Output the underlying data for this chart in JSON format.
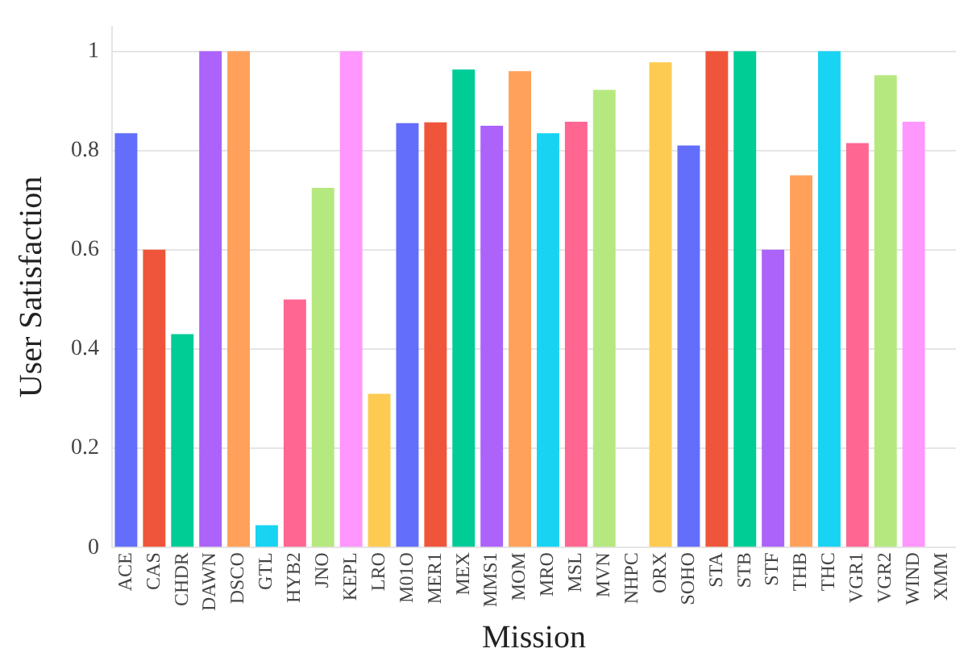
{
  "chart_data": {
    "type": "bar",
    "xlabel": "Mission",
    "ylabel": "User Satisfaction",
    "categories": [
      "ACE",
      "CAS",
      "CHDR",
      "DAWN",
      "DSCO",
      "GTL",
      "HYB2",
      "JNO",
      "KEPL",
      "LRO",
      "M01O",
      "MER1",
      "MEX",
      "MMS1",
      "MOM",
      "MRO",
      "MSL",
      "MVN",
      "NHPC",
      "ORX",
      "SOHO",
      "STA",
      "STB",
      "STF",
      "THB",
      "THC",
      "VGR1",
      "VGR2",
      "WIND",
      "XMM"
    ],
    "values": [
      0.835,
      0.6,
      0.43,
      1,
      1,
      0.045,
      0.5,
      0.725,
      1,
      0.31,
      0.855,
      0.857,
      0.963,
      0.85,
      0.96,
      0.835,
      0.858,
      0.922,
      0,
      0.978,
      0.81,
      1,
      1,
      0.6,
      0.75,
      1,
      0.815,
      0.952,
      0.858,
      0
    ],
    "colors": [
      "#636efa",
      "#ef553b",
      "#00cc96",
      "#ab63fa",
      "#ffa15a",
      "#19d3f3",
      "#ff6692",
      "#b6e880",
      "#ff97ff",
      "#fecb52",
      "#636efa",
      "#ef553b",
      "#00cc96",
      "#ab63fa",
      "#ffa15a",
      "#19d3f3",
      "#ff6692",
      "#b6e880",
      "#ff97ff",
      "#fecb52",
      "#636efa",
      "#ef553b",
      "#00cc96",
      "#ab63fa",
      "#ffa15a",
      "#19d3f3",
      "#ff6692",
      "#b6e880",
      "#ff97ff",
      "#fecb52"
    ],
    "ylim": [
      0,
      1.05
    ],
    "yticks": [
      0,
      0.2,
      0.4,
      0.6,
      0.8,
      1
    ],
    "grid": "y"
  }
}
